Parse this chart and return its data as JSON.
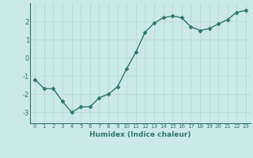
{
  "x": [
    0,
    1,
    2,
    3,
    4,
    5,
    6,
    7,
    8,
    9,
    10,
    11,
    12,
    13,
    14,
    15,
    16,
    17,
    18,
    19,
    20,
    21,
    22,
    23
  ],
  "y": [
    -1.2,
    -1.7,
    -1.7,
    -2.4,
    -3.0,
    -2.7,
    -2.7,
    -2.2,
    -2.0,
    -1.6,
    -0.6,
    0.3,
    1.4,
    1.9,
    2.2,
    2.3,
    2.2,
    1.7,
    1.5,
    1.6,
    1.85,
    2.1,
    2.5,
    2.6
  ],
  "xlabel": "Humidex (Indice chaleur)",
  "ylim": [
    -3.6,
    3.0
  ],
  "xlim": [
    -0.5,
    23.5
  ],
  "yticks": [
    -3,
    -2,
    -1,
    0,
    1,
    2
  ],
  "xticks": [
    0,
    1,
    2,
    3,
    4,
    5,
    6,
    7,
    8,
    9,
    10,
    11,
    12,
    13,
    14,
    15,
    16,
    17,
    18,
    19,
    20,
    21,
    22,
    23
  ],
  "line_color": "#2d7a6e",
  "marker": "D",
  "marker_size": 2.5,
  "bg_color": "#cce9e7",
  "grid_color": "#b8d8d5",
  "text_color": "#2d7a6e"
}
